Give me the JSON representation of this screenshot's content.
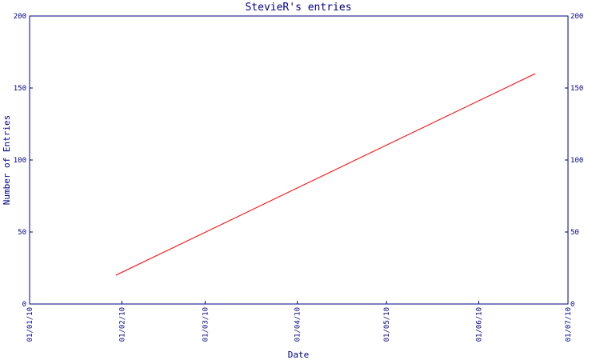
{
  "chart_data": {
    "type": "line",
    "title": "StevieR's entries",
    "xlabel": "Date",
    "ylabel": "Number of Entries",
    "x_ticks": [
      "01/01/10",
      "01/02/10",
      "01/03/10",
      "01/04/10",
      "01/05/10",
      "01/06/10",
      "01/07/10"
    ],
    "y_ticks": [
      0,
      50,
      100,
      150,
      200
    ],
    "ylim": [
      0,
      200
    ],
    "xlim": [
      "01/01/10",
      "01/07/10"
    ],
    "series": [
      {
        "color": "#ff0000",
        "points": [
          {
            "x": "30/01/10",
            "y": 20
          },
          {
            "x": "20/06/10",
            "y": 160
          }
        ]
      }
    ],
    "grid": false,
    "axis_color": "#000080",
    "text_color": "#000080"
  }
}
